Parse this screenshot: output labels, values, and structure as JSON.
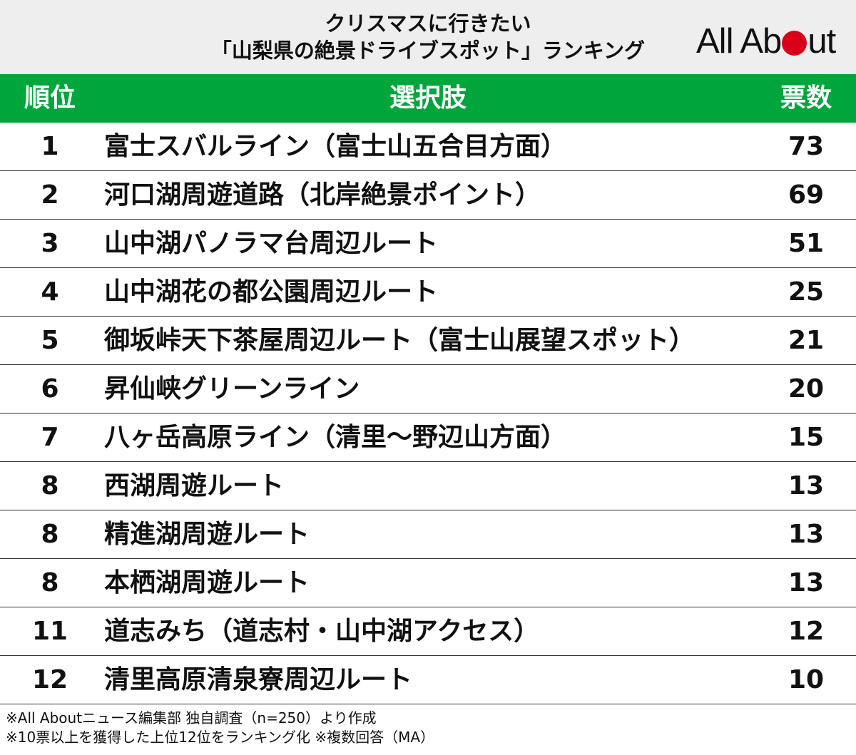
{
  "header": {
    "title_line1": "クリスマスに行きたい",
    "title_line2": "「山梨県の絶景ドライブスポット」ランキング",
    "logo_part1": "All Ab",
    "logo_part2": "ut"
  },
  "colors": {
    "header_bg": "#eeeeee",
    "table_header_bg": "#00a63c",
    "logo_dot": "#d9001b"
  },
  "chart_data": {
    "type": "table",
    "columns": [
      "順位",
      "選択肢",
      "票数"
    ],
    "rows": [
      {
        "rank": "1",
        "choice": "富士スバルライン（富士山五合目方面）",
        "votes": 73
      },
      {
        "rank": "2",
        "choice": "河口湖周遊道路（北岸絶景ポイント）",
        "votes": 69
      },
      {
        "rank": "3",
        "choice": "山中湖パノラマ台周辺ルート",
        "votes": 51
      },
      {
        "rank": "4",
        "choice": "山中湖花の都公園周辺ルート",
        "votes": 25
      },
      {
        "rank": "5",
        "choice": "御坂峠天下茶屋周辺ルート（富士山展望スポット）",
        "votes": 21
      },
      {
        "rank": "6",
        "choice": "昇仙峡グリーンライン",
        "votes": 20
      },
      {
        "rank": "7",
        "choice": "八ヶ岳高原ライン（清里〜野辺山方面）",
        "votes": 15
      },
      {
        "rank": "8",
        "choice": "西湖周遊ルート",
        "votes": 13
      },
      {
        "rank": "8",
        "choice": "精進湖周遊ルート",
        "votes": 13
      },
      {
        "rank": "8",
        "choice": "本栖湖周遊ルート",
        "votes": 13
      },
      {
        "rank": "11",
        "choice": "道志みち（道志村・山中湖アクセス）",
        "votes": 12
      },
      {
        "rank": "12",
        "choice": "清里高原清泉寮周辺ルート",
        "votes": 10
      }
    ]
  },
  "footer": {
    "line1": "※All Aboutニュース編集部 独自調査（n=250）より作成",
    "line2": "※10票以上を獲得した上位12位をランキング化 ※複数回答（MA）"
  }
}
